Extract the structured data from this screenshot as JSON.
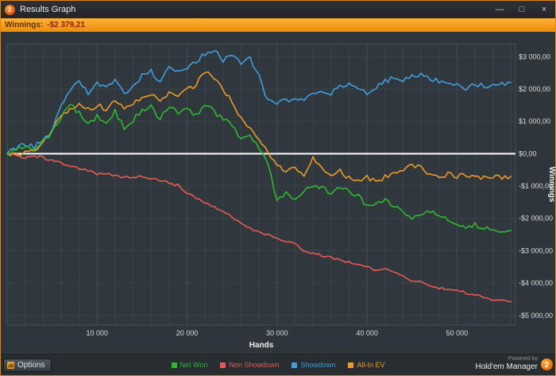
{
  "window": {
    "title": "Results Graph",
    "controls": {
      "minimize": "—",
      "maximize": "□",
      "close": "×"
    }
  },
  "app_icon_text": "2",
  "winnings_bar": {
    "label": "Winnings:",
    "value": "-$2 379,21"
  },
  "chart_data": {
    "type": "line",
    "title": "",
    "xlabel": "Hands",
    "ylabel": "Winnings",
    "xlim": [
      0,
      56500
    ],
    "ylim": [
      -5300,
      3400
    ],
    "x_step": 1000,
    "grid_x_step": 2000,
    "grid": true,
    "legend_position": "bottom",
    "zero_line_color": "#ffffff",
    "x_ticks": [
      10000,
      20000,
      30000,
      40000,
      50000
    ],
    "x_tick_labels": [
      "10 000",
      "20 000",
      "30 000",
      "40 000",
      "50 000"
    ],
    "y_ticks": [
      3000,
      2000,
      1000,
      0,
      -1000,
      -2000,
      -3000,
      -4000,
      -5000
    ],
    "y_tick_labels": [
      "$3 000,00",
      "$2 000,00",
      "$1 000,00",
      "$0,00",
      "-$1 000,00",
      "-$2 000,00",
      "-$3 000,00",
      "-$4 000,00",
      "-$5 000,00"
    ],
    "series": [
      {
        "name": "Net Won",
        "color": "#2db92d",
        "values": [
          0,
          120,
          250,
          150,
          420,
          650,
          1150,
          1500,
          1250,
          900,
          1150,
          1000,
          1300,
          800,
          1050,
          1350,
          1450,
          1050,
          1500,
          1250,
          1350,
          1200,
          1500,
          1300,
          1050,
          900,
          400,
          600,
          100,
          -300,
          -1450,
          -1250,
          -1350,
          -1150,
          -950,
          -1050,
          -1200,
          -1000,
          -1150,
          -1300,
          -1600,
          -1500,
          -1450,
          -1600,
          -1800,
          -2000,
          -1900,
          -1750,
          -1950,
          -2050,
          -2150,
          -2250,
          -2200,
          -2300,
          -2350,
          -2400,
          -2379
        ]
      },
      {
        "name": "Non Showdown",
        "color": "#e75a52",
        "values": [
          0,
          -60,
          -120,
          -60,
          -120,
          -220,
          -280,
          -380,
          -450,
          -520,
          -640,
          -620,
          -700,
          -730,
          -760,
          -700,
          -760,
          -820,
          -900,
          -980,
          -1200,
          -1350,
          -1500,
          -1650,
          -1800,
          -1950,
          -2150,
          -2300,
          -2430,
          -2520,
          -2600,
          -2700,
          -2780,
          -3000,
          -3080,
          -3150,
          -3200,
          -3280,
          -3350,
          -3420,
          -3520,
          -3600,
          -3580,
          -3680,
          -3780,
          -3920,
          -3980,
          -4050,
          -4150,
          -4180,
          -4220,
          -4300,
          -4350,
          -4420,
          -4500,
          -4540,
          -4579
        ]
      },
      {
        "name": "Showdown",
        "color": "#3f9ede",
        "values": [
          0,
          150,
          300,
          200,
          450,
          700,
          1450,
          2000,
          2200,
          1850,
          2150,
          2000,
          2300,
          1900,
          2050,
          2400,
          2550,
          2250,
          2700,
          2500,
          2600,
          2850,
          3100,
          3240,
          2900,
          3050,
          2800,
          2950,
          2400,
          1600,
          1550,
          1650,
          1720,
          1650,
          1820,
          1950,
          1880,
          2050,
          2180,
          2080,
          1900,
          2050,
          2250,
          2350,
          2250,
          2380,
          2450,
          2320,
          2230,
          2180,
          2120,
          2030,
          2150,
          2080,
          2130,
          2180,
          2200
        ]
      },
      {
        "name": "All-In EV",
        "color": "#ee9a27",
        "values": [
          0,
          -40,
          20,
          120,
          350,
          750,
          1150,
          1400,
          1520,
          1350,
          1500,
          1380,
          1600,
          1440,
          1560,
          1760,
          1870,
          1660,
          1860,
          1760,
          1960,
          2150,
          2550,
          2350,
          2000,
          1600,
          1100,
          800,
          400,
          60,
          -320,
          -560,
          -440,
          -660,
          -140,
          -460,
          -650,
          -540,
          -760,
          -860,
          -740,
          -840,
          -720,
          -620,
          -500,
          -370,
          -450,
          -660,
          -760,
          -640,
          -700,
          -650,
          -710,
          -760,
          -700,
          -730,
          -700
        ]
      }
    ]
  },
  "statusbar": {
    "options_label": "Options",
    "powered_by": "Powered by",
    "brand": "Hold'em Manager",
    "logo_text": "2"
  }
}
